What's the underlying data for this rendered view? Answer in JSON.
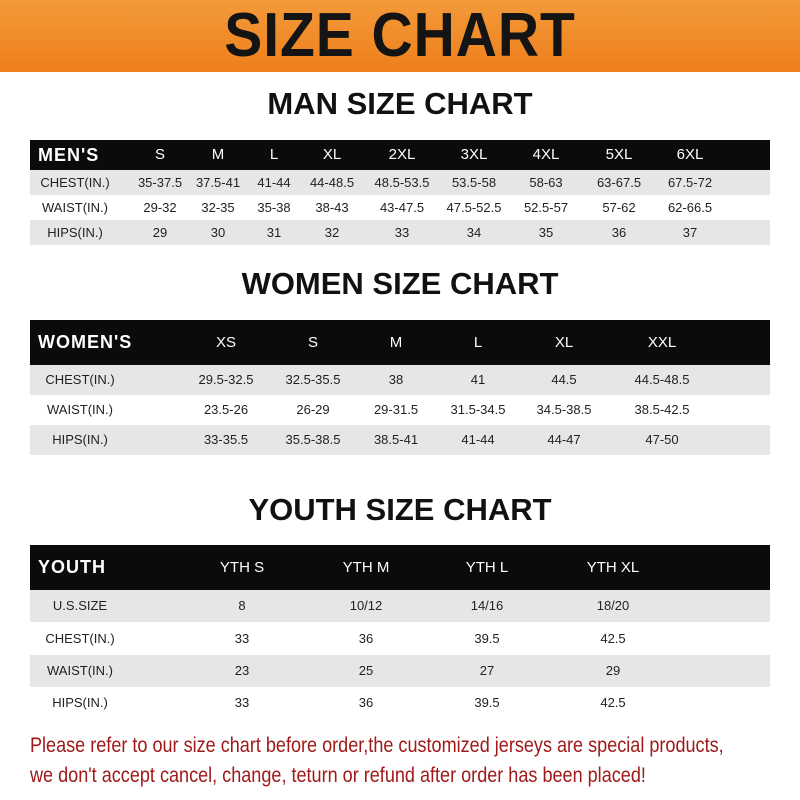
{
  "banner": {
    "title": "SIZE CHART",
    "color": "#ee7f1b"
  },
  "men": {
    "title": "MAN SIZE CHART",
    "header": [
      "MEN'S",
      "S",
      "M",
      "L",
      "XL",
      "2XL",
      "3XL",
      "4XL",
      "5XL",
      "6XL"
    ],
    "rows": [
      [
        "CHEST(IN.)",
        "35-37.5",
        "37.5-41",
        "41-44",
        "44-48.5",
        "48.5-53.5",
        "53.5-58",
        "58-63",
        "63-67.5",
        "67.5-72"
      ],
      [
        "WAIST(IN.)",
        "29-32",
        "32-35",
        "35-38",
        "38-43",
        "43-47.5",
        "47.5-52.5",
        "52.5-57",
        "57-62",
        "62-66.5"
      ],
      [
        "HIPS(IN.)",
        "29",
        "30",
        "31",
        "32",
        "33",
        "34",
        "35",
        "36",
        "37"
      ]
    ]
  },
  "women": {
    "title": "WOMEN SIZE CHART",
    "header": [
      "WOMEN'S",
      "XS",
      "S",
      "M",
      "L",
      "XL",
      "XXL"
    ],
    "rows": [
      [
        "CHEST(IN.)",
        "29.5-32.5",
        "32.5-35.5",
        "38",
        "41",
        "44.5",
        "44.5-48.5"
      ],
      [
        "WAIST(IN.)",
        "23.5-26",
        "26-29",
        "29-31.5",
        "31.5-34.5",
        "34.5-38.5",
        "38.5-42.5"
      ],
      [
        "HIPS(IN.)",
        "33-35.5",
        "35.5-38.5",
        "38.5-41",
        "41-44",
        "44-47",
        "47-50"
      ]
    ]
  },
  "youth": {
    "title": "YOUTH SIZE CHART",
    "header": [
      "YOUTH",
      "YTH S",
      "YTH M",
      "YTH L",
      "YTH XL"
    ],
    "rows": [
      [
        "U.S.SIZE",
        "8",
        "10/12",
        "14/16",
        "18/20"
      ],
      [
        "CHEST(IN.)",
        "33",
        "36",
        "39.5",
        "42.5"
      ],
      [
        "WAIST(IN.)",
        "23",
        "25",
        "27",
        "29"
      ],
      [
        "HIPS(IN.)",
        "33",
        "36",
        "39.5",
        "42.5"
      ]
    ]
  },
  "note": {
    "line1": "Please refer to our size chart before order,the customized jerseys are special products,",
    "line2": "we don't accept cancel, change, teturn or refund after order has been placed!",
    "color": "#a01a1a"
  }
}
